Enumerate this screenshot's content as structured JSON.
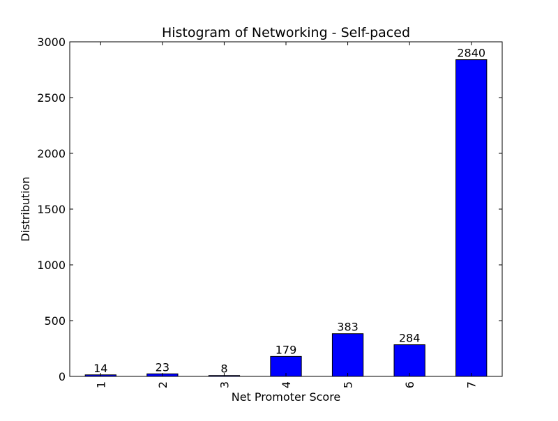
{
  "chart_data": {
    "type": "bar",
    "title": "Histogram of Networking - Self-paced",
    "xlabel": "Net Promoter Score",
    "ylabel": "Distribution",
    "categories": [
      "1",
      "2",
      "3",
      "4",
      "5",
      "6",
      "7"
    ],
    "values": [
      14,
      23,
      8,
      179,
      383,
      284,
      2840
    ],
    "data_labels": [
      "14",
      "23",
      "8",
      "179",
      "383",
      "284",
      "2840"
    ],
    "ylim": [
      0,
      3000
    ],
    "yticks": [
      0,
      500,
      1000,
      1500,
      2000,
      2500,
      3000
    ],
    "ytick_labels": [
      "0",
      "500",
      "1000",
      "1500",
      "2000",
      "2500",
      "3000"
    ],
    "bar_color": "#0000ff",
    "grid": false,
    "legend": "none"
  }
}
